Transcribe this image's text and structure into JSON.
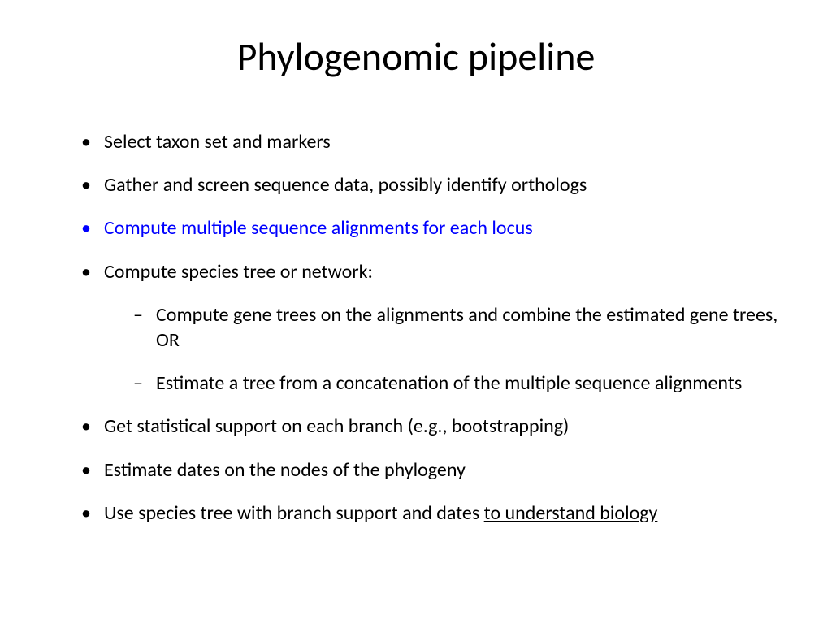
{
  "title": "Phylogenomic pipeline",
  "colors": {
    "text": "#000000",
    "highlight": "#0000ff",
    "background": "#ffffff"
  },
  "typography": {
    "title_fontsize": 48,
    "body_fontsize": 24,
    "font_family": "Calibri"
  },
  "bullets": [
    {
      "text": "Select taxon set and markers",
      "highlight": false
    },
    {
      "text": "Gather and screen sequence data, possibly identify orthologs",
      "highlight": false
    },
    {
      "text": "Compute multiple sequence alignments for each locus",
      "highlight": true
    },
    {
      "text": "Compute species tree or network:",
      "highlight": false,
      "sub": [
        "Compute gene trees on the alignments and combine the estimated gene trees, OR",
        "Estimate a tree from a concatenation of the multiple sequence alignments"
      ]
    },
    {
      "text": "Get statistical support on each branch (e.g., bootstrapping)",
      "highlight": false
    },
    {
      "text": "Estimate dates on the nodes of the phylogeny",
      "highlight": false
    },
    {
      "text_prefix": "Use species tree with branch support and dates ",
      "text_underlined": "to understand biology",
      "highlight": false
    }
  ]
}
